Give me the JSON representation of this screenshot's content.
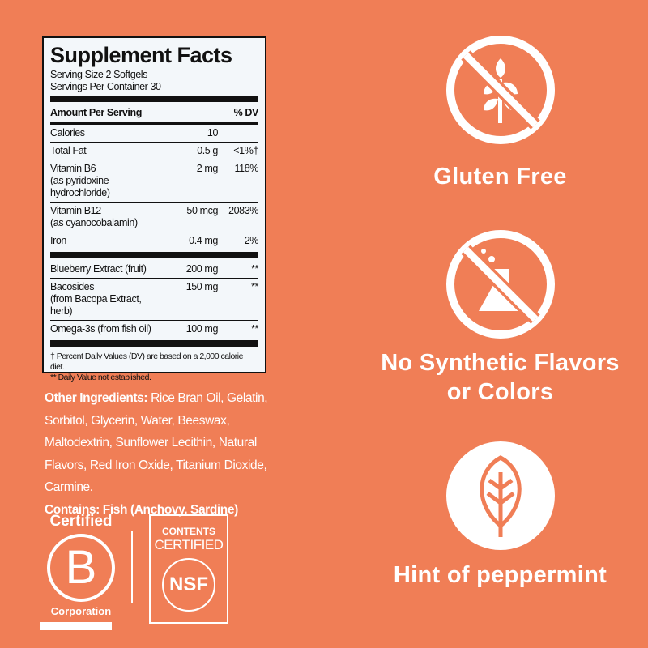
{
  "supplement_facts": {
    "title": "Supplement Facts",
    "serving_size": "Serving Size 2 Softgels",
    "servings_per_container": "Servings Per Container 30",
    "header": {
      "amount": "Amount Per Serving",
      "dv": "% DV"
    },
    "rows": [
      {
        "name": "Calories",
        "sub": "",
        "amount": "10",
        "dv": ""
      },
      {
        "name": "Total Fat",
        "sub": "",
        "amount": "0.5 g",
        "dv": "<1%†"
      },
      {
        "name": "Vitamin B6",
        "sub": "(as pyridoxine hydrochloride)",
        "amount": "2 mg",
        "dv": "118%"
      },
      {
        "name": "Vitamin B12",
        "sub": "(as cyanocobalamin)",
        "amount": "50 mcg",
        "dv": "2083%"
      },
      {
        "name": "Iron",
        "sub": "",
        "amount": "0.4 mg",
        "dv": "2%"
      }
    ],
    "rows2": [
      {
        "name": "Blueberry Extract (fruit)",
        "sub": "",
        "amount": "200 mg",
        "dv": "**"
      },
      {
        "name": "Bacosides",
        "sub": "(from Bacopa Extract, herb)",
        "amount": "150 mg",
        "dv": "**"
      },
      {
        "name": "Omega-3s (from fish oil)",
        "sub": "",
        "amount": "100 mg",
        "dv": "**"
      }
    ],
    "footnote1": "† Percent Daily Values (DV) are based on a 2,000 calorie diet.",
    "footnote2": "** Daily Value not established."
  },
  "ingredients": {
    "label": "Other Ingredients:",
    "text": " Rice Bran Oil, Gelatin, Sorbitol, Glycerin, Water, Beeswax, Maltodextrin, Sunflower Lecithin, Natural Flavors, Red Iron Oxide, Titanium Dioxide, Carmine.",
    "contains": "Contains: Fish (Anchovy, Sardine)"
  },
  "logos": {
    "bcorp": {
      "top": "Certified",
      "letter": "B",
      "bottom": "Corporation"
    },
    "nsf": {
      "line1": "CONTENTS",
      "line2": "CERTIFIED",
      "mark": "NSF"
    }
  },
  "claims": [
    {
      "icon": "no-wheat-icon",
      "label": "Gluten Free"
    },
    {
      "icon": "no-flask-icon",
      "label": "No Synthetic Flavors or Colors"
    },
    {
      "icon": "mint-leaf-icon",
      "label": "Hint of peppermint"
    }
  ],
  "colors": {
    "background": "#F07E56",
    "panel": "#F3F7FA",
    "text": "#FFFFFF"
  }
}
